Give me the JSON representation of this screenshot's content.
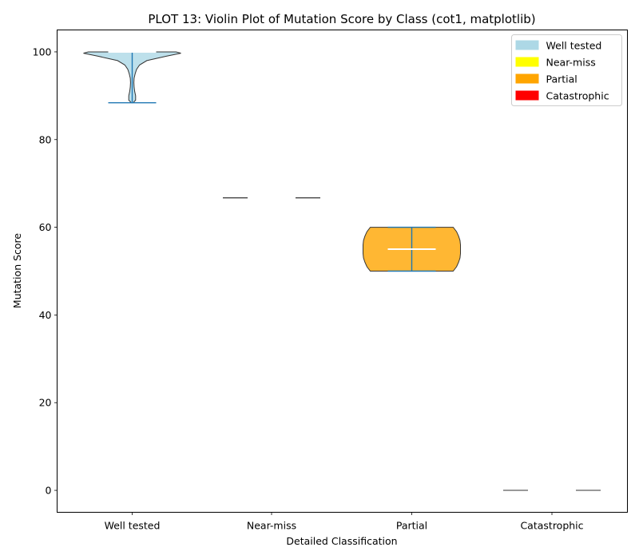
{
  "chart_data": {
    "type": "violin",
    "title": "PLOT 13: Violin Plot of Mutation Score by Class (cot1, matplotlib)",
    "xlabel": "Detailed Classification",
    "ylabel": "Mutation Score",
    "categories": [
      "Well tested",
      "Near-miss",
      "Partial",
      "Catastrophic"
    ],
    "ylim": [
      -5,
      105
    ],
    "yticks": [
      0,
      20,
      40,
      60,
      80,
      100
    ],
    "ytick_labels": [
      "0",
      "20",
      "40",
      "60",
      "80",
      "100"
    ],
    "grid": false,
    "legend_position": "top-right",
    "colors": {
      "Well tested": "#add8e6",
      "Near-miss": "#ffff00",
      "Partial": "#ffa500",
      "Catastrophic": "#ff0000"
    },
    "violins": [
      {
        "name": "Well tested",
        "min": 88.4,
        "max": 100,
        "median": 100,
        "profile": [
          [
            88.4,
            0.02
          ],
          [
            89,
            0.07
          ],
          [
            90,
            0.07
          ],
          [
            91,
            0.05
          ],
          [
            92,
            0.04
          ],
          [
            93,
            0.035
          ],
          [
            94,
            0.04
          ],
          [
            95,
            0.06
          ],
          [
            96,
            0.09
          ],
          [
            97,
            0.15
          ],
          [
            98,
            0.3
          ],
          [
            99,
            0.7
          ],
          [
            99.7,
            1.0
          ],
          [
            100,
            0.9
          ]
        ]
      },
      {
        "name": "Near-miss",
        "min": 66.7,
        "max": 66.7,
        "median": 66.7,
        "profile": []
      },
      {
        "name": "Partial",
        "min": 50,
        "max": 60,
        "median": 55,
        "profile": [
          [
            50,
            0.85
          ],
          [
            51,
            0.92
          ],
          [
            52,
            0.96
          ],
          [
            53,
            0.99
          ],
          [
            54,
            1.0
          ],
          [
            55,
            1.0
          ],
          [
            56,
            1.0
          ],
          [
            57,
            0.99
          ],
          [
            58,
            0.96
          ],
          [
            59,
            0.92
          ],
          [
            60,
            0.85
          ]
        ]
      },
      {
        "name": "Catastrophic",
        "min": 0,
        "max": 0,
        "median": 0,
        "profile": []
      }
    ],
    "legend": [
      {
        "label": "Well tested",
        "color": "#add8e6"
      },
      {
        "label": "Near-miss",
        "color": "#ffff00"
      },
      {
        "label": "Partial",
        "color": "#ffa500"
      },
      {
        "label": "Catastrophic",
        "color": "#ff0000"
      }
    ]
  }
}
